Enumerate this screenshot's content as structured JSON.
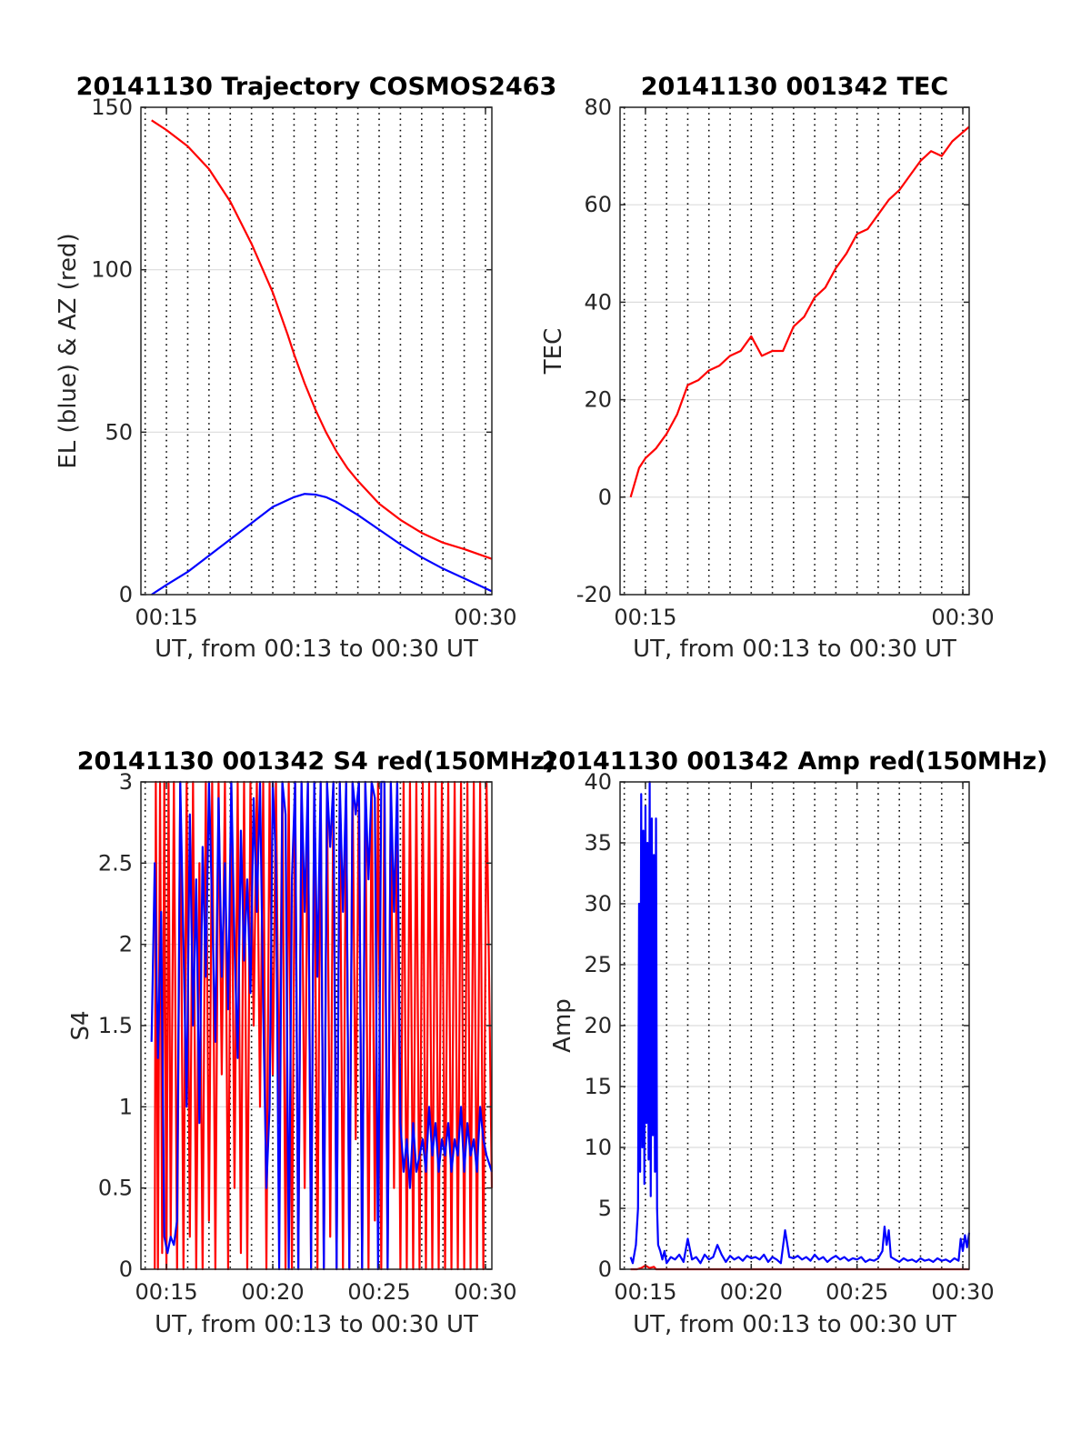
{
  "chart_data": [
    {
      "id": "trajectory",
      "type": "line",
      "title": "20141130 Trajectory COSMOS2463",
      "xlabel": "UT, from 00:13 to 00:30 UT",
      "ylabel": "EL (blue) & AZ (red)",
      "xlim": [
        13.8,
        30.3
      ],
      "ylim": [
        0,
        150
      ],
      "xticks": [
        {
          "value": 15,
          "label": "00:15"
        },
        {
          "value": 30,
          "label": "00:30"
        }
      ],
      "yticks": [
        0,
        50,
        100,
        150
      ],
      "vgrid_dotted_every_minutes": 1,
      "hgrid": true,
      "series": [
        {
          "color": "#ff0000",
          "x": [
            14.3,
            15,
            16,
            17,
            18,
            19,
            20,
            20.7,
            21,
            21.5,
            22,
            22.5,
            23,
            23.5,
            24,
            25,
            26,
            27,
            28,
            29,
            30.3
          ],
          "values": [
            146,
            143,
            138,
            131,
            121,
            108,
            93,
            80,
            74,
            65,
            57,
            50,
            44,
            39,
            35,
            28,
            23,
            19,
            16,
            14,
            11
          ]
        },
        {
          "color": "#0000ff",
          "x": [
            14.3,
            15,
            16,
            17,
            18,
            19,
            20,
            21,
            21.5,
            22,
            22.5,
            23,
            24,
            25,
            26,
            27,
            28,
            29,
            30.3
          ],
          "values": [
            0,
            3,
            7,
            12,
            17,
            22,
            27,
            30,
            31,
            30.8,
            30,
            28.5,
            24.5,
            20,
            15.5,
            11.5,
            8,
            5,
            1
          ]
        }
      ]
    },
    {
      "id": "tec",
      "type": "line",
      "title": "20141130 001342 TEC",
      "xlabel": "UT, from 00:13 to 00:30 UT",
      "ylabel": "TEC",
      "xlim": [
        13.8,
        30.3
      ],
      "ylim": [
        -20,
        80
      ],
      "xticks": [
        {
          "value": 15,
          "label": "00:15"
        },
        {
          "value": 30,
          "label": "00:30"
        }
      ],
      "yticks": [
        -20,
        0,
        20,
        40,
        60,
        80
      ],
      "vgrid_dotted_every_minutes": 1,
      "hgrid": true,
      "series": [
        {
          "color": "#ff0000",
          "x": [
            14.3,
            14.7,
            15,
            15.5,
            16,
            16.5,
            17,
            17.5,
            18,
            18.5,
            19,
            19.5,
            20,
            20.5,
            21,
            21.5,
            22,
            22.5,
            23,
            23.5,
            24,
            24.5,
            25,
            25.5,
            26,
            26.5,
            27,
            27.5,
            28,
            28.5,
            29,
            29.5,
            30.3
          ],
          "values": [
            0,
            6,
            8,
            10,
            13,
            17,
            23,
            24,
            26,
            27,
            29,
            30,
            33,
            29,
            30,
            30,
            35,
            37,
            41,
            43,
            47,
            50,
            54,
            55,
            58,
            61,
            63,
            66,
            69,
            71,
            70,
            73,
            76
          ]
        }
      ]
    },
    {
      "id": "s4",
      "type": "line",
      "title": "20141130 001342 S4 red(150MHz)",
      "xlabel": "UT, from 00:13 to 00:30 UT",
      "ylabel": "S4",
      "xlim": [
        13.8,
        30.3
      ],
      "ylim": [
        0,
        3
      ],
      "xticks": [
        {
          "value": 15,
          "label": "00:15"
        },
        {
          "value": 20,
          "label": "00:20"
        },
        {
          "value": 25,
          "label": "00:25"
        },
        {
          "value": 30,
          "label": "00:30"
        }
      ],
      "yticks": [
        {
          "value": 0,
          "label": "0"
        },
        {
          "value": 0.5,
          "label": "0.5"
        },
        {
          "value": 1,
          "label": "1"
        },
        {
          "value": 1.5,
          "label": "1.5"
        },
        {
          "value": 2,
          "label": "2"
        },
        {
          "value": 2.5,
          "label": "2.5"
        },
        {
          "value": 3,
          "label": "3"
        }
      ],
      "vgrid_dotted_every_minutes": 1,
      "hgrid": true,
      "series": [
        {
          "color": "#ff0000",
          "x": [
            14.45,
            14.5,
            14.6,
            14.7,
            14.8,
            14.9,
            15.0,
            15.1,
            15.2,
            15.35,
            15.5,
            15.65,
            15.8,
            15.95,
            16.1,
            16.25,
            16.4,
            16.55,
            16.7,
            16.85,
            17.0,
            17.15,
            17.3,
            17.45,
            17.6,
            17.75,
            17.9,
            18.05,
            18.2,
            18.35,
            18.5,
            18.65,
            18.8,
            18.95,
            19.1,
            19.25,
            19.4,
            19.55,
            19.7,
            19.85,
            20.0,
            20.15,
            20.3,
            20.45,
            20.6,
            20.75,
            20.9,
            21.05,
            21.2,
            21.35,
            21.5,
            21.65,
            21.8,
            21.95,
            22.1,
            22.25,
            22.4,
            22.55,
            22.7,
            22.85,
            23.0,
            23.15,
            23.3,
            23.45,
            23.6,
            23.75,
            23.9,
            24.05,
            24.2,
            24.35,
            24.5,
            24.65,
            24.8,
            24.95,
            25.1,
            25.25,
            25.4,
            25.55,
            25.7,
            25.85,
            26.0,
            26.15,
            26.3,
            26.45,
            26.6,
            26.75,
            26.9,
            27.05,
            27.2,
            27.35,
            27.5,
            27.65,
            27.8,
            27.95,
            28.1,
            28.25,
            28.4,
            28.55,
            28.7,
            28.85,
            29.0,
            29.15,
            29.3,
            29.45,
            29.6,
            29.75,
            29.9,
            30.05,
            30.3
          ],
          "values": [
            0,
            3,
            0,
            3,
            0.1,
            3,
            0,
            3,
            0.2,
            3,
            0,
            3,
            0,
            3,
            0.2,
            3,
            0,
            2.5,
            0,
            3,
            0.3,
            3,
            0,
            3,
            1.2,
            3,
            0,
            3,
            0.5,
            3,
            0.1,
            3,
            0,
            3,
            1.5,
            3,
            1,
            3,
            0,
            3,
            1.2,
            3,
            0.9,
            3,
            0,
            3,
            0,
            3,
            0,
            3,
            0.5,
            3,
            0,
            3,
            0,
            3,
            0,
            3,
            0.2,
            3,
            0,
            3,
            0,
            3,
            0,
            3,
            0.8,
            3,
            0,
            3,
            0,
            3,
            0.3,
            3,
            0,
            3,
            0,
            3,
            0.5,
            3,
            0,
            3,
            0,
            3,
            0,
            3,
            0,
            3,
            0,
            3,
            0,
            3,
            0,
            3,
            0,
            3,
            0,
            3,
            0,
            3,
            0,
            3,
            0,
            3,
            0,
            3,
            0,
            3,
            0.5
          ]
        },
        {
          "color": "#0000ff",
          "x": [
            14.3,
            14.45,
            14.6,
            14.75,
            14.9,
            15.05,
            15.2,
            15.35,
            15.5,
            15.65,
            15.8,
            15.95,
            16.1,
            16.25,
            16.4,
            16.55,
            16.7,
            16.85,
            17.0,
            17.15,
            17.3,
            17.45,
            17.6,
            17.75,
            17.9,
            18.05,
            18.2,
            18.35,
            18.5,
            18.65,
            18.8,
            18.95,
            19.1,
            19.25,
            19.4,
            19.55,
            19.7,
            19.85,
            20.0,
            20.15,
            20.3,
            20.45,
            20.6,
            20.75,
            20.9,
            21.05,
            21.2,
            21.35,
            21.5,
            21.65,
            21.8,
            21.95,
            22.1,
            22.25,
            22.4,
            22.55,
            22.7,
            22.85,
            23.0,
            23.15,
            23.3,
            23.45,
            23.6,
            23.75,
            23.9,
            24.05,
            24.2,
            24.35,
            24.5,
            24.65,
            24.8,
            24.95,
            25.1,
            25.25,
            25.4,
            25.55,
            25.7,
            25.85,
            26.0,
            26.15,
            26.3,
            26.45,
            26.6,
            26.75,
            26.9,
            27.05,
            27.2,
            27.35,
            27.5,
            27.65,
            27.8,
            27.95,
            28.1,
            28.25,
            28.4,
            28.55,
            28.7,
            28.85,
            29.0,
            29.15,
            29.3,
            29.45,
            29.6,
            29.75,
            29.9,
            30.05,
            30.3
          ],
          "values": [
            1.4,
            2.5,
            1.3,
            2.2,
            0.2,
            0.1,
            0.2,
            0.15,
            0.3,
            3,
            2.0,
            1.0,
            2.8,
            1.5,
            2.4,
            0.9,
            2.6,
            1.8,
            3,
            2.2,
            1.4,
            2.9,
            1.8,
            2.5,
            1.6,
            3,
            2.0,
            1.3,
            2.7,
            1.9,
            2.4,
            1.7,
            2.9,
            2.2,
            3,
            1.6,
            0.5,
            1.0,
            3,
            2.5,
            0,
            3,
            2.8,
            0,
            2.4,
            3,
            0,
            3,
            2.2,
            3,
            0,
            3,
            1.8,
            3,
            0,
            3,
            2.6,
            3,
            0,
            3,
            2.2,
            3,
            0,
            3,
            2.8,
            3,
            0,
            3,
            2.4,
            3,
            2.9,
            0,
            3,
            3,
            0,
            3,
            2.2,
            3,
            0.9,
            0.6,
            0.8,
            0.5,
            0.9,
            0.6,
            0.7,
            0.8,
            0.6,
            1.0,
            0.7,
            0.9,
            0.6,
            0.8,
            0.7,
            0.9,
            0.6,
            0.8,
            0.7,
            1.0,
            0.6,
            0.9,
            0.7,
            0.8,
            0.6,
            1.0,
            0.8,
            0.7,
            0.6
          ]
        }
      ]
    },
    {
      "id": "amp",
      "type": "line",
      "title": "20141130 001342 Amp red(150MHz)",
      "xlabel": "UT, from 00:13 to 00:30 UT",
      "ylabel": "Amp",
      "xlim": [
        13.8,
        30.3
      ],
      "ylim": [
        0,
        40
      ],
      "xticks": [
        {
          "value": 15,
          "label": "00:15"
        },
        {
          "value": 20,
          "label": "00:20"
        },
        {
          "value": 25,
          "label": "00:25"
        },
        {
          "value": 30,
          "label": "00:30"
        }
      ],
      "yticks": [
        0,
        5,
        10,
        15,
        20,
        25,
        30,
        35,
        40
      ],
      "vgrid_dotted_every_minutes": 1,
      "hgrid": true,
      "series": [
        {
          "color": "#ff0000",
          "x": [
            14.3,
            14.6,
            14.8,
            15.0,
            15.2,
            15.4,
            15.5,
            15.6,
            16.0,
            17.0,
            18.0,
            19.0,
            20.0,
            21.0,
            22.0,
            23.0,
            24.0,
            25.0,
            26.0,
            27.0,
            28.0,
            29.0,
            30.3
          ],
          "values": [
            0,
            0,
            0.1,
            0.3,
            0.1,
            0.2,
            0,
            0,
            0,
            0,
            0,
            0,
            0,
            0,
            0,
            0,
            0,
            0,
            0,
            0,
            0,
            0,
            0
          ]
        },
        {
          "color": "#0000ff",
          "x": [
            14.3,
            14.4,
            14.55,
            14.65,
            14.7,
            14.75,
            14.8,
            14.85,
            14.9,
            14.95,
            15.0,
            15.05,
            15.1,
            15.15,
            15.2,
            15.25,
            15.3,
            15.35,
            15.4,
            15.45,
            15.5,
            15.55,
            15.6,
            15.7,
            15.8,
            15.9,
            16.0,
            16.2,
            16.4,
            16.6,
            16.8,
            17.0,
            17.2,
            17.4,
            17.6,
            17.8,
            18.0,
            18.2,
            18.4,
            18.6,
            18.8,
            19.0,
            19.2,
            19.4,
            19.6,
            19.8,
            20.0,
            20.2,
            20.4,
            20.6,
            20.8,
            21.0,
            21.2,
            21.4,
            21.6,
            21.8,
            22.0,
            22.2,
            22.4,
            22.6,
            22.8,
            23.0,
            23.2,
            23.4,
            23.6,
            23.8,
            24.0,
            24.2,
            24.4,
            24.6,
            24.8,
            25.0,
            25.2,
            25.4,
            25.6,
            25.8,
            26.0,
            26.2,
            26.3,
            26.4,
            26.5,
            26.6,
            26.8,
            27.0,
            27.2,
            27.4,
            27.6,
            27.8,
            28.0,
            28.2,
            28.4,
            28.6,
            28.8,
            29.0,
            29.2,
            29.4,
            29.6,
            29.8,
            29.9,
            30.0,
            30.1,
            30.2,
            30.3
          ],
          "values": [
            1.0,
            0.5,
            2,
            5,
            30,
            8,
            39,
            10,
            36,
            7,
            38,
            12,
            35,
            9,
            40,
            6,
            37,
            11,
            34,
            8,
            37,
            5,
            2,
            1.5,
            0.8,
            1.5,
            0.5,
            1.0,
            0.8,
            1.2,
            0.6,
            2.5,
            0.8,
            1.0,
            0.5,
            1.2,
            0.8,
            1.0,
            2.0,
            1.2,
            0.6,
            1.1,
            0.8,
            1.0,
            0.7,
            1.1,
            0.9,
            1.0,
            0.8,
            1.2,
            0.6,
            1.0,
            0.8,
            0.5,
            3.2,
            1.0,
            0.9,
            1.1,
            0.8,
            1.0,
            0.7,
            1.2,
            0.8,
            1.0,
            0.6,
            0.9,
            1.1,
            0.8,
            1.0,
            0.7,
            0.9,
            0.8,
            1.0,
            0.6,
            0.8,
            0.7,
            0.9,
            1.5,
            3.5,
            2.0,
            3.2,
            1.0,
            0.8,
            0.6,
            0.9,
            0.7,
            0.8,
            0.6,
            0.9,
            0.7,
            0.8,
            0.6,
            0.9,
            0.7,
            0.8,
            0.6,
            0.9,
            0.7,
            2.5,
            1.5,
            2.8,
            1.8,
            3.0
          ]
        }
      ]
    }
  ]
}
